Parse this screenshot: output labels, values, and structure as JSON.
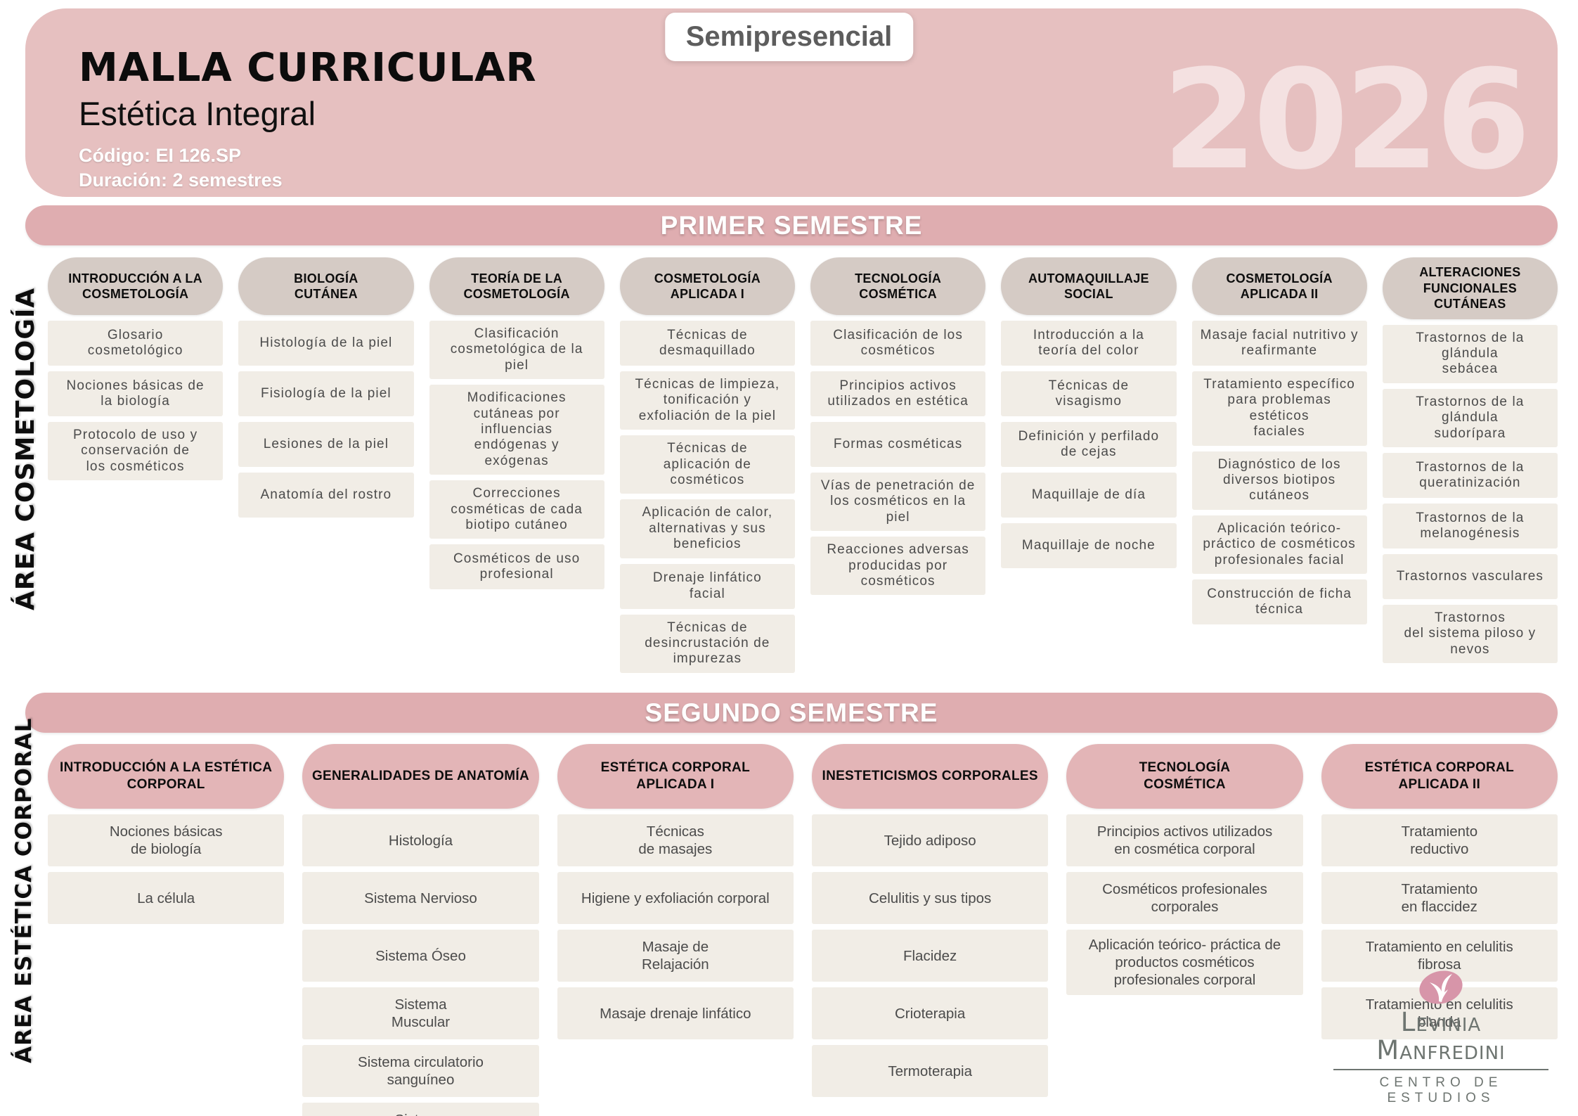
{
  "header": {
    "title": "MALLA CURRICULAR",
    "subtitle": "Estética Integral",
    "code": "Código: EI 126.SP",
    "duration": "Duración: 2 semestres",
    "modality_badge": "Semipresencial",
    "year": "2026"
  },
  "semesters": [
    {
      "band": "PRIMER SEMESTRE",
      "area_label": "ÁREA COSMETOLOGÍA",
      "columns": [
        {
          "header": "INTRODUCCIÓN A LA\nCOSMETOLOGÍA",
          "topics": [
            "Glosario\ncosmetológico",
            "Nociones básicas de\nla biología",
            "Protocolo de uso y\nconservación de\nlos cosméticos"
          ]
        },
        {
          "header": "BIOLOGÍA\nCUTÁNEA",
          "topics": [
            "Histología de la piel",
            "Fisiología de la piel",
            "Lesiones de la piel",
            "Anatomía del rostro"
          ]
        },
        {
          "header": "TEORÍA DE LA\nCOSMETOLOGÍA",
          "topics": [
            "Clasificación\ncosmetológica de la\npiel",
            "Modificaciones\ncutáneas por\ninfluencias\nendógenas y\nexógenas",
            "Correcciones\ncosméticas de cada\nbiotipo cutáneo",
            "Cosméticos de uso\nprofesional"
          ]
        },
        {
          "header": "COSMETOLOGÍA\nAPLICADA I",
          "topics": [
            "Técnicas de\ndesmaquillado",
            "Técnicas de limpieza,\ntonificación y\nexfoliación de la piel",
            "Técnicas de\naplicación de\ncosméticos",
            "Aplicación de calor,\nalternativas y sus\nbeneficios",
            "Drenaje linfático\nfacial",
            "Técnicas de\ndesincrustación de\nimpurezas"
          ]
        },
        {
          "header": "TECNOLOGÍA COSMÉTICA",
          "topics": [
            "Clasificación de los\ncosméticos",
            "Principios activos\nutilizados en estética",
            "Formas cosméticas",
            "Vías de penetración de\nlos cosméticos en la piel",
            "Reacciones adversas\nproducidas por\ncosméticos"
          ]
        },
        {
          "header": "AUTOMAQUILLAJE\nSOCIAL",
          "topics": [
            "Introducción a la\nteoría del color",
            "Técnicas de\nvisagismo",
            "Definición y perfilado\nde cejas",
            "Maquillaje de día",
            "Maquillaje de noche"
          ]
        },
        {
          "header": "COSMETOLOGÍA\nAPLICADA II",
          "topics": [
            "Masaje facial nutritivo y\nreafirmante",
            "Tratamiento específico\npara problemas estéticos\nfaciales",
            "Diagnóstico de los\ndiversos biotipos\ncutáneos",
            "Aplicación teórico-\npráctico de cosméticos\nprofesionales facial",
            "Construcción de ficha\ntécnica"
          ]
        },
        {
          "header": "ALTERACIONES\nFUNCIONALES CUTÁNEAS",
          "topics": [
            "Trastornos de la glándula\nsebácea",
            "Trastornos de la glándula\nsudorípara",
            "Trastornos de la\nqueratinización",
            "Trastornos de la\nmelanogénesis",
            "Trastornos vasculares",
            "Trastornos\ndel sistema piloso y nevos"
          ]
        }
      ]
    },
    {
      "band": "SEGUNDO SEMESTRE",
      "area_label": "ÁREA ESTÉTICA CORPORAL",
      "columns": [
        {
          "header": "INTRODUCCIÓN A LA ESTÉTICA\nCORPORAL",
          "topics": [
            "Nociones básicas\nde biología",
            "La célula"
          ]
        },
        {
          "header": "GENERALIDADES DE ANATOMÍA",
          "topics": [
            "Histología",
            "Sistema Nervioso",
            "Sistema Óseo",
            "Sistema\nMuscular",
            "Sistema circulatorio\nsanguíneo",
            "Sistema\nLinfático"
          ]
        },
        {
          "header": "ESTÉTICA CORPORAL\nAPLICADA I",
          "topics": [
            "Técnicas\nde masajes",
            "Higiene y exfoliación corporal",
            "Masaje de\nRelajación",
            "Masaje drenaje linfático"
          ]
        },
        {
          "header": "INESTETICISMOS CORPORALES",
          "topics": [
            "Tejido adiposo",
            "Celulitis y sus tipos",
            "Flacidez",
            "Crioterapia",
            "Termoterapia"
          ]
        },
        {
          "header": "TECNOLOGÍA\nCOSMÉTICA",
          "topics": [
            "Principios activos utilizados\nen cosmética corporal",
            "Cosméticos profesionales\ncorporales",
            "Aplicación teórico- práctica de\nproductos cosméticos\nprofesionales corporal"
          ]
        },
        {
          "header": "ESTÉTICA CORPORAL\nAPLICADA II",
          "topics": [
            "Tratamiento\nreductivo",
            "Tratamiento\nen flaccidez",
            "Tratamiento en celulitis\nfibrosa",
            "Tratamiento en celulitis\nblanda"
          ]
        }
      ]
    }
  ],
  "logo": {
    "name": "Levinia Manfredini",
    "tagline": "CENTRO DE ESTUDIOS"
  },
  "colors": {
    "header_pink": "#E6C0C0",
    "band_pink": "#DFADB0",
    "semester1_pill": "#D5CBC5",
    "semester2_pill": "#E3B5B7",
    "topic_box": "#F1EDE6",
    "topic_text": "#4B4B4B",
    "band_text": "#FFFFFF",
    "year_text": "#F4E1E1",
    "badge_text": "#5D5D5D",
    "logo_green": "#6E7571",
    "logo_pink": "#D795A9"
  }
}
